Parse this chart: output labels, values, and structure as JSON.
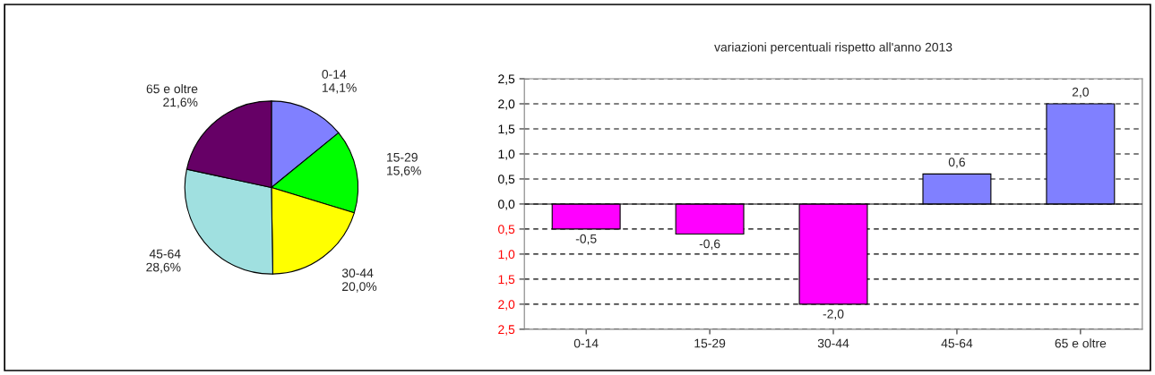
{
  "chart_data": [
    {
      "type": "pie",
      "categories": [
        "0-14",
        "15-29",
        "30-44",
        "45-64",
        "65 e oltre"
      ],
      "values": [
        14.1,
        15.6,
        20.0,
        28.6,
        21.6
      ],
      "value_labels": [
        "14,1%",
        "15,6%",
        "20,0%",
        "28,6%",
        "21,6%"
      ],
      "colors": [
        "#8080ff",
        "#00ff00",
        "#ffff00",
        "#a0e0e0",
        "#660066"
      ]
    },
    {
      "type": "bar",
      "title": "variazioni percentuali rispetto all'anno 2013",
      "categories": [
        "0-14",
        "15-29",
        "30-44",
        "45-64",
        "65 e oltre"
      ],
      "values": [
        -0.5,
        -0.6,
        -2.0,
        0.6,
        2.0
      ],
      "value_labels": [
        "-0,5",
        "-0,6",
        "-2,0",
        "0,6",
        "2,0"
      ],
      "colors": [
        "#ff00ff",
        "#ff00ff",
        "#ff00ff",
        "#8080ff",
        "#8080ff"
      ],
      "ylim": [
        -2.5,
        2.5
      ],
      "yticks": [
        {
          "value": -2.5,
          "label": "2,5"
        },
        {
          "value": -2.0,
          "label": "2,0"
        },
        {
          "value": -1.5,
          "label": "1,5"
        },
        {
          "value": -1.0,
          "label": "1,0"
        },
        {
          "value": -0.5,
          "label": "0,5"
        },
        {
          "value": 0,
          "label": "0,0"
        },
        {
          "value": 0.5,
          "label": "0,5"
        },
        {
          "value": 1.0,
          "label": "1,0"
        },
        {
          "value": 1.5,
          "label": "1,5"
        },
        {
          "value": 2.0,
          "label": "2,0"
        },
        {
          "value": 2.5,
          "label": "2,5"
        }
      ],
      "grid": "y",
      "legend": false
    }
  ]
}
